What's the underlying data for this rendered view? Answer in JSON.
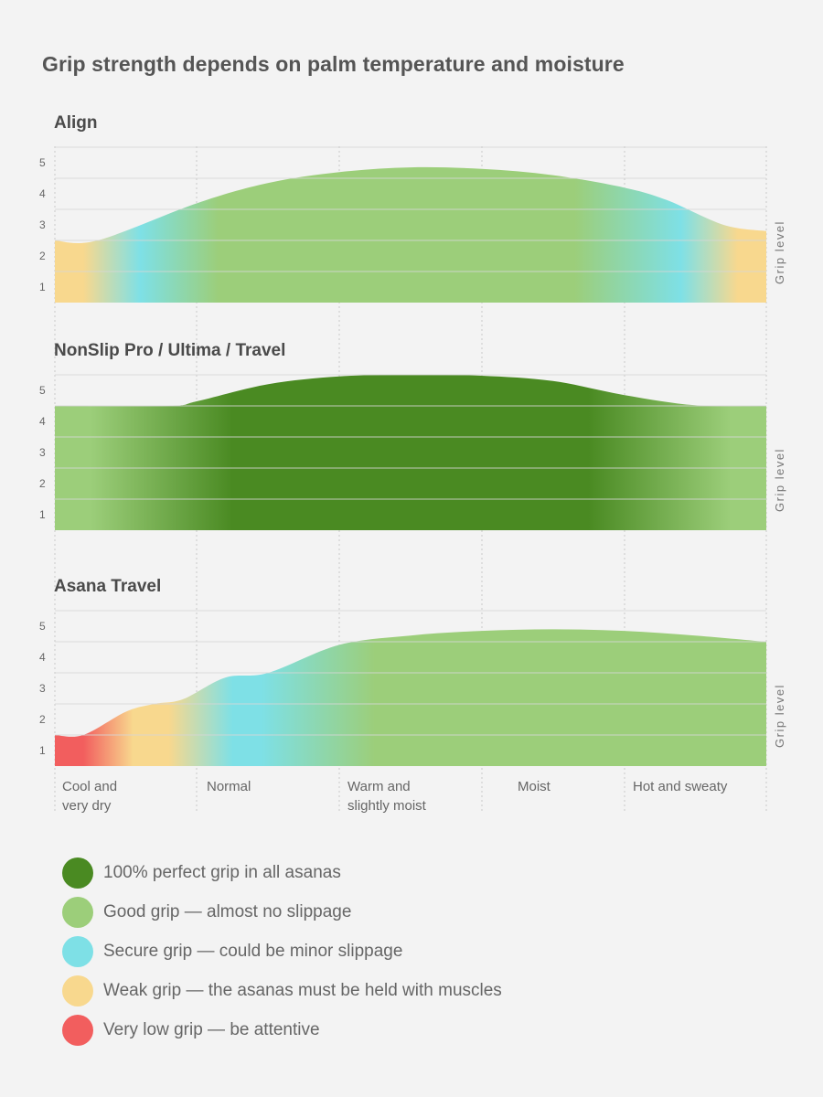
{
  "title": "Grip strength depends on palm temperature and moisture",
  "colors": {
    "perfect": "#4a8a22",
    "good": "#9cce7a",
    "secure": "#7ee0e6",
    "weak": "#f8d88e",
    "very_low": "#f25e5e",
    "grid": "#d6d6d6",
    "divider": "#c8c8c8"
  },
  "categories": [
    "Cool and very dry",
    "Normal",
    "Warm and slightly moist",
    "Moist",
    "Hot and sweaty"
  ],
  "legend": [
    {
      "key": "perfect",
      "label": "100% perfect grip in all asanas"
    },
    {
      "key": "good",
      "label": "Good grip — almost no slippage"
    },
    {
      "key": "secure",
      "label": "Secure grip — could be minor slippage"
    },
    {
      "key": "weak",
      "label": "Weak grip — the asanas must be held with muscles"
    },
    {
      "key": "very_low",
      "label": "Very low grip — be attentive"
    }
  ],
  "chart_data": [
    {
      "type": "area",
      "title": "Align",
      "ylabel": "Grip level",
      "yticks": [
        1,
        2,
        3,
        4,
        5
      ],
      "ylim": [
        0,
        5
      ],
      "xlim": [
        0,
        5
      ],
      "grid": true,
      "points": [
        [
          0,
          2.0
        ],
        [
          0.3,
          2.0
        ],
        [
          1.0,
          3.2
        ],
        [
          1.5,
          3.85
        ],
        [
          2.0,
          4.2
        ],
        [
          2.5,
          4.35
        ],
        [
          3.0,
          4.3
        ],
        [
          3.5,
          4.1
        ],
        [
          4.0,
          3.7
        ],
        [
          4.3,
          3.3
        ],
        [
          4.7,
          2.5
        ],
        [
          5.0,
          2.3
        ]
      ],
      "color_stops": [
        [
          0.0,
          "weak"
        ],
        [
          0.04,
          "weak"
        ],
        [
          0.12,
          "secure"
        ],
        [
          0.23,
          "good"
        ],
        [
          0.73,
          "good"
        ],
        [
          0.88,
          "secure"
        ],
        [
          0.96,
          "weak"
        ],
        [
          1.0,
          "weak"
        ]
      ]
    },
    {
      "type": "area",
      "title": "NonSlip Pro / Ultima / Travel",
      "ylabel": "Grip level",
      "yticks": [
        1,
        2,
        3,
        4,
        5
      ],
      "ylim": [
        0,
        5
      ],
      "xlim": [
        0,
        5
      ],
      "grid": true,
      "points": [
        [
          0,
          4.0
        ],
        [
          0.8,
          4.0
        ],
        [
          1.0,
          4.15
        ],
        [
          1.5,
          4.7
        ],
        [
          2.0,
          4.95
        ],
        [
          2.5,
          5.0
        ],
        [
          3.0,
          4.97
        ],
        [
          3.5,
          4.8
        ],
        [
          4.0,
          4.35
        ],
        [
          4.5,
          4.02
        ],
        [
          5.0,
          4.0
        ]
      ],
      "color_stops": [
        [
          0.0,
          "good"
        ],
        [
          0.05,
          "good"
        ],
        [
          0.25,
          "perfect"
        ],
        [
          0.75,
          "perfect"
        ],
        [
          0.95,
          "good"
        ],
        [
          1.0,
          "good"
        ]
      ]
    },
    {
      "type": "area",
      "title": "Asana Travel",
      "ylabel": "Grip level",
      "yticks": [
        1,
        2,
        3,
        4,
        5
      ],
      "ylim": [
        0,
        5
      ],
      "xlim": [
        0,
        5
      ],
      "grid": true,
      "points": [
        [
          0,
          1.0
        ],
        [
          0.2,
          1.0
        ],
        [
          0.5,
          1.75
        ],
        [
          0.7,
          2.0
        ],
        [
          0.9,
          2.15
        ],
        [
          1.2,
          2.85
        ],
        [
          1.5,
          3.0
        ],
        [
          2.0,
          3.9
        ],
        [
          2.5,
          4.2
        ],
        [
          3.0,
          4.35
        ],
        [
          3.5,
          4.4
        ],
        [
          4.0,
          4.35
        ],
        [
          4.5,
          4.2
        ],
        [
          5.0,
          4.0
        ]
      ],
      "color_stops": [
        [
          0.0,
          "very_low"
        ],
        [
          0.04,
          "very_low"
        ],
        [
          0.11,
          "weak"
        ],
        [
          0.16,
          "weak"
        ],
        [
          0.25,
          "secure"
        ],
        [
          0.29,
          "secure"
        ],
        [
          0.45,
          "good"
        ],
        [
          1.0,
          "good"
        ]
      ]
    }
  ]
}
